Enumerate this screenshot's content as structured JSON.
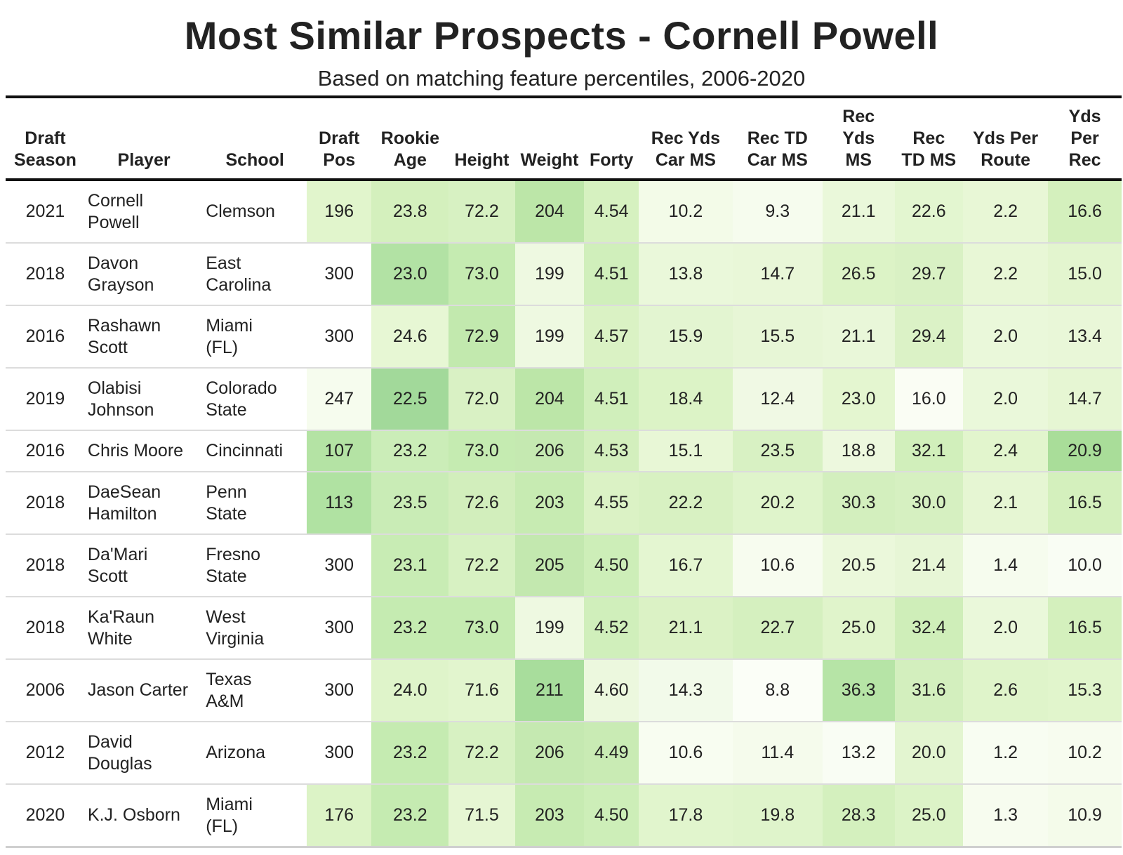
{
  "chart_data": {
    "type": "table",
    "title": "Most Similar Prospects - Cornell Powell",
    "subtitle": "Based on matching feature percentiles, 2006-2020",
    "columns": [
      {
        "key": "season",
        "label": [
          "Draft",
          "Season"
        ]
      },
      {
        "key": "player",
        "label": [
          "Player"
        ]
      },
      {
        "key": "school",
        "label": [
          "School"
        ]
      },
      {
        "key": "draft_pos",
        "label": [
          "Draft",
          "Pos"
        ]
      },
      {
        "key": "rookie_age",
        "label": [
          "Rookie",
          "Age"
        ]
      },
      {
        "key": "height",
        "label": [
          "Height"
        ]
      },
      {
        "key": "weight",
        "label": [
          "Weight"
        ]
      },
      {
        "key": "forty",
        "label": [
          "Forty"
        ]
      },
      {
        "key": "rec_yds_car_ms",
        "label": [
          "Rec Yds",
          "Car MS"
        ]
      },
      {
        "key": "rec_td_car_ms",
        "label": [
          "Rec TD",
          "Car MS"
        ]
      },
      {
        "key": "rec_yds_ms",
        "label": [
          "Rec",
          "Yds",
          "MS"
        ]
      },
      {
        "key": "rec_td_ms",
        "label": [
          "Rec",
          "TD MS"
        ]
      },
      {
        "key": "yds_per_route",
        "label": [
          "Yds Per",
          "Route"
        ]
      },
      {
        "key": "yds_per_rec",
        "label": [
          "Yds",
          "Per",
          "Rec"
        ]
      }
    ],
    "rows": [
      {
        "season": "2021",
        "player": [
          "Cornell",
          "Powell"
        ],
        "school": [
          "Clemson"
        ],
        "draft_pos": "196",
        "rookie_age": "23.8",
        "height": "72.2",
        "weight": "204",
        "forty": "4.54",
        "rec_yds_car_ms": "10.2",
        "rec_td_car_ms": "9.3",
        "rec_yds_ms": "21.1",
        "rec_td_ms": "22.6",
        "yds_per_route": "2.2",
        "yds_per_rec": "16.6"
      },
      {
        "season": "2018",
        "player": [
          "Davon",
          "Grayson"
        ],
        "school": [
          "East",
          "Carolina"
        ],
        "draft_pos": "300",
        "rookie_age": "23.0",
        "height": "73.0",
        "weight": "199",
        "forty": "4.51",
        "rec_yds_car_ms": "13.8",
        "rec_td_car_ms": "14.7",
        "rec_yds_ms": "26.5",
        "rec_td_ms": "29.7",
        "yds_per_route": "2.2",
        "yds_per_rec": "15.0"
      },
      {
        "season": "2016",
        "player": [
          "Rashawn",
          "Scott"
        ],
        "school": [
          "Miami",
          "(FL)"
        ],
        "draft_pos": "300",
        "rookie_age": "24.6",
        "height": "72.9",
        "weight": "199",
        "forty": "4.57",
        "rec_yds_car_ms": "15.9",
        "rec_td_car_ms": "15.5",
        "rec_yds_ms": "21.1",
        "rec_td_ms": "29.4",
        "yds_per_route": "2.0",
        "yds_per_rec": "13.4"
      },
      {
        "season": "2019",
        "player": [
          "Olabisi",
          "Johnson"
        ],
        "school": [
          "Colorado",
          "State"
        ],
        "draft_pos": "247",
        "rookie_age": "22.5",
        "height": "72.0",
        "weight": "204",
        "forty": "4.51",
        "rec_yds_car_ms": "18.4",
        "rec_td_car_ms": "12.4",
        "rec_yds_ms": "23.0",
        "rec_td_ms": "16.0",
        "yds_per_route": "2.0",
        "yds_per_rec": "14.7"
      },
      {
        "season": "2016",
        "player": [
          "Chris Moore"
        ],
        "school": [
          "Cincinnati"
        ],
        "draft_pos": "107",
        "rookie_age": "23.2",
        "height": "73.0",
        "weight": "206",
        "forty": "4.53",
        "rec_yds_car_ms": "15.1",
        "rec_td_car_ms": "23.5",
        "rec_yds_ms": "18.8",
        "rec_td_ms": "32.1",
        "yds_per_route": "2.4",
        "yds_per_rec": "20.9"
      },
      {
        "season": "2018",
        "player": [
          "DaeSean",
          "Hamilton"
        ],
        "school": [
          "Penn",
          "State"
        ],
        "draft_pos": "113",
        "rookie_age": "23.5",
        "height": "72.6",
        "weight": "203",
        "forty": "4.55",
        "rec_yds_car_ms": "22.2",
        "rec_td_car_ms": "20.2",
        "rec_yds_ms": "30.3",
        "rec_td_ms": "30.0",
        "yds_per_route": "2.1",
        "yds_per_rec": "16.5"
      },
      {
        "season": "2018",
        "player": [
          "Da'Mari",
          "Scott"
        ],
        "school": [
          "Fresno",
          "State"
        ],
        "draft_pos": "300",
        "rookie_age": "23.1",
        "height": "72.2",
        "weight": "205",
        "forty": "4.50",
        "rec_yds_car_ms": "16.7",
        "rec_td_car_ms": "10.6",
        "rec_yds_ms": "20.5",
        "rec_td_ms": "21.4",
        "yds_per_route": "1.4",
        "yds_per_rec": "10.0"
      },
      {
        "season": "2018",
        "player": [
          "Ka'Raun",
          "White"
        ],
        "school": [
          "West",
          "Virginia"
        ],
        "draft_pos": "300",
        "rookie_age": "23.2",
        "height": "73.0",
        "weight": "199",
        "forty": "4.52",
        "rec_yds_car_ms": "21.1",
        "rec_td_car_ms": "22.7",
        "rec_yds_ms": "25.0",
        "rec_td_ms": "32.4",
        "yds_per_route": "2.0",
        "yds_per_rec": "16.5"
      },
      {
        "season": "2006",
        "player": [
          "Jason Carter"
        ],
        "school": [
          "Texas",
          "A&M"
        ],
        "draft_pos": "300",
        "rookie_age": "24.0",
        "height": "71.6",
        "weight": "211",
        "forty": "4.60",
        "rec_yds_car_ms": "14.3",
        "rec_td_car_ms": "8.8",
        "rec_yds_ms": "36.3",
        "rec_td_ms": "31.6",
        "yds_per_route": "2.6",
        "yds_per_rec": "15.3"
      },
      {
        "season": "2012",
        "player": [
          "David",
          "Douglas"
        ],
        "school": [
          "Arizona"
        ],
        "draft_pos": "300",
        "rookie_age": "23.2",
        "height": "72.2",
        "weight": "206",
        "forty": "4.49",
        "rec_yds_car_ms": "10.6",
        "rec_td_car_ms": "11.4",
        "rec_yds_ms": "13.2",
        "rec_td_ms": "20.0",
        "yds_per_route": "1.2",
        "yds_per_rec": "10.2"
      },
      {
        "season": "2020",
        "player": [
          "K.J. Osborn"
        ],
        "school": [
          "Miami",
          "(FL)"
        ],
        "draft_pos": "176",
        "rookie_age": "23.2",
        "height": "71.5",
        "weight": "203",
        "forty": "4.50",
        "rec_yds_car_ms": "17.8",
        "rec_td_car_ms": "19.8",
        "rec_yds_ms": "28.3",
        "rec_td_ms": "25.0",
        "yds_per_route": "1.3",
        "yds_per_rec": "10.9"
      }
    ],
    "cell_colors": [
      [
        "#e1f5cc",
        "#d4f0bd",
        "#d7f1c2",
        "#bce6a8",
        "#d6f1c0",
        "#f3fbe8",
        "#f6fcee",
        "#eaf8da",
        "#e3f6d0",
        "#e8f7d6",
        "#d4f0bd"
      ],
      [
        "#ffffff",
        "#b2e2a4",
        "#c5ebb1",
        "#eef9e1",
        "#d0efbb",
        "#eaf8da",
        "#e9f7d8",
        "#dcf3c6",
        "#d9f1c4",
        "#e8f7d6",
        "#e3f5cf"
      ],
      [
        "#ffffff",
        "#e7f7d4",
        "#c2e9ae",
        "#eef9e1",
        "#daf2c4",
        "#e3f5d1",
        "#e7f6d6",
        "#e9f7d9",
        "#dbf2c6",
        "#eaf8da",
        "#e9f7d8"
      ],
      [
        "#f6fcee",
        "#a2d99a",
        "#d9f1c4",
        "#bce6a8",
        "#d0efbb",
        "#dcf3c6",
        "#f0f9e4",
        "#e4f6d0",
        "#fafdf4",
        "#eaf8da",
        "#e6f6d3"
      ],
      [
        "#b4e3a4",
        "#cbedb8",
        "#c5ebb1",
        "#c5e9b1",
        "#d3efbd",
        "#e8f7d6",
        "#d8f1c3",
        "#edf8de",
        "#d1efbb",
        "#e2f5cd",
        "#a9dd99"
      ],
      [
        "#b0e2a2",
        "#c9ecb6",
        "#d2eebc",
        "#c7ebb2",
        "#dbf2c5",
        "#d8f1c2",
        "#dff4cb",
        "#d3efbe",
        "#d6f0c1",
        "#e6f6d3",
        "#d4f0bd"
      ],
      [
        "#ffffff",
        "#c8ecb4",
        "#d7f1c2",
        "#c3e8af",
        "#cdeeb8",
        "#e4f6d1",
        "#f7fcef",
        "#ebf8db",
        "#e7f6d6",
        "#f6fcee",
        "#f9fdf4"
      ],
      [
        "#ffffff",
        "#c5ebb1",
        "#c5ebb1",
        "#eef9e1",
        "#d0efbb",
        "#dbf2c5",
        "#d5f0bf",
        "#e0f4cb",
        "#cfeeb9",
        "#eaf8da",
        "#d4f0bd"
      ],
      [
        "#ffffff",
        "#dff4ca",
        "#e2f5ce",
        "#a8dd9c",
        "#ecf8de",
        "#f2faea",
        "#fbfef7",
        "#b6e4a6",
        "#d3efbe",
        "#dff4ca",
        "#e1f5cc"
      ],
      [
        "#ffffff",
        "#c5ebb1",
        "#d7f1c2",
        "#c5e9b1",
        "#c9ebb4",
        "#f8fdf1",
        "#f5fbec",
        "#f9fdf4",
        "#e3f5d0",
        "#f8fdf2",
        "#f7fcef"
      ],
      [
        "#dcf3c6",
        "#c5ebb1",
        "#e6f6d3",
        "#c7ebb2",
        "#cdeeb8",
        "#e1f5cd",
        "#dff4cb",
        "#d4f0be",
        "#dcf3c7",
        "#f7fcef",
        "#f4fbea"
      ]
    ]
  }
}
